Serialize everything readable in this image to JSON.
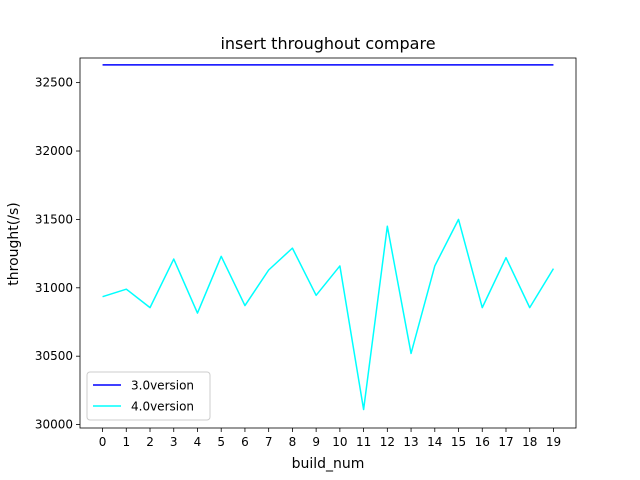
{
  "chart_data": {
    "type": "line",
    "title": "insert throughout compare",
    "xlabel": "build_num",
    "ylabel": "throught(/s)",
    "x": [
      0,
      1,
      2,
      3,
      4,
      5,
      6,
      7,
      8,
      9,
      10,
      11,
      12,
      13,
      14,
      15,
      16,
      17,
      18,
      19
    ],
    "x_ticks": [
      "0",
      "1",
      "2",
      "3",
      "4",
      "5",
      "6",
      "7",
      "8",
      "9",
      "10",
      "11",
      "12",
      "13",
      "14",
      "15",
      "16",
      "17",
      "18",
      "19"
    ],
    "y_ticks": [
      30000,
      30500,
      31000,
      31500,
      32000,
      32500
    ],
    "y_tick_labels": [
      "30000",
      "30500",
      "31000",
      "31500",
      "32000",
      "32500"
    ],
    "xlim": [
      -0.95,
      19.95
    ],
    "ylim": [
      29975,
      32680
    ],
    "grid": false,
    "legend_position": "lower-left",
    "series": [
      {
        "name": "3.0version",
        "color": "#0000ff",
        "values": [
          32630,
          32630,
          32630,
          32630,
          32630,
          32630,
          32630,
          32630,
          32630,
          32630,
          32630,
          32630,
          32630,
          32630,
          32630,
          32630,
          32630,
          32630,
          32630,
          32630
        ]
      },
      {
        "name": "4.0version",
        "color": "#00ffff",
        "values": [
          30935,
          30990,
          30855,
          31210,
          30815,
          31230,
          30870,
          31130,
          31290,
          30945,
          31160,
          30110,
          31450,
          30520,
          31160,
          31500,
          30855,
          31220,
          30855,
          31140
        ]
      }
    ]
  }
}
